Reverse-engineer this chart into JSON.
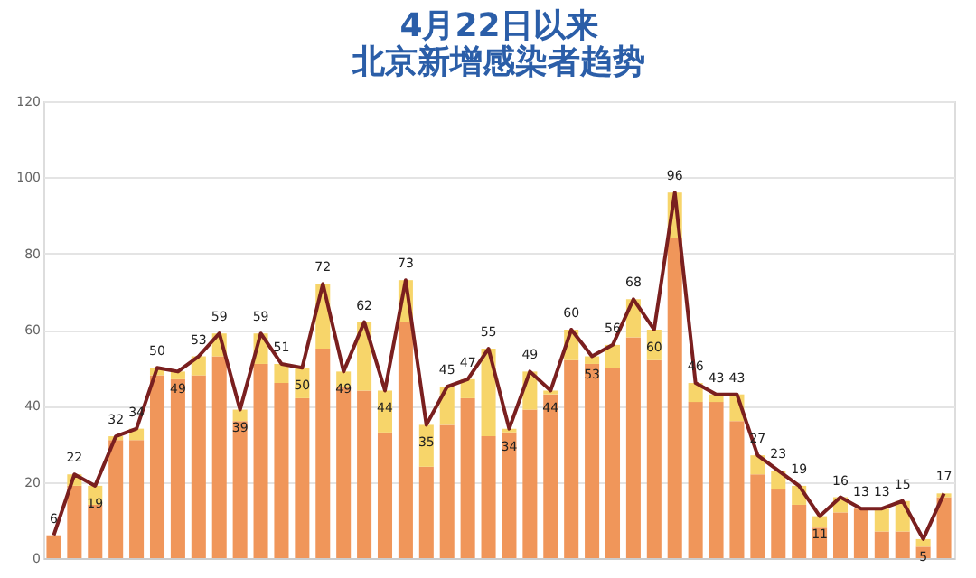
{
  "chart_data": {
    "type": "bar",
    "title": [
      "4月22日以来",
      "北京新增感染者趋势"
    ],
    "categories": [
      null,
      null,
      null,
      null,
      null,
      null,
      null,
      null,
      null,
      null,
      null,
      null,
      null,
      null,
      null,
      null,
      null,
      null,
      null,
      null,
      null,
      null,
      null,
      null,
      null,
      null,
      null,
      null,
      null,
      null,
      null,
      null,
      null,
      null,
      null,
      null,
      null,
      null,
      null,
      null,
      null,
      null,
      null,
      null
    ],
    "stacked": true,
    "ylim": [
      0,
      120
    ],
    "yticks": [
      0,
      20,
      40,
      60,
      80,
      100,
      120
    ],
    "grid": "y",
    "tick_labels": "y",
    "series": [
      {
        "color": "#f0965a",
        "values": [
          6,
          19,
          14,
          31,
          31,
          48,
          47,
          48,
          53,
          36,
          51,
          46,
          42,
          55,
          45,
          44,
          33,
          62,
          24,
          35,
          42,
          32,
          33,
          39,
          43,
          52,
          51,
          50,
          58,
          52,
          84,
          41,
          41,
          36,
          22,
          18,
          14,
          8,
          12,
          13,
          7,
          7,
          3,
          16
        ]
      },
      {
        "color": "#f7d56a",
        "values": [
          0,
          3,
          5,
          1,
          3,
          2,
          2,
          5,
          6,
          3,
          8,
          5,
          8,
          17,
          4,
          18,
          11,
          11,
          11,
          10,
          5,
          23,
          1,
          10,
          1,
          8,
          2,
          6,
          10,
          8,
          12,
          5,
          2,
          7,
          5,
          5,
          5,
          3,
          4,
          0,
          6,
          8,
          2,
          1
        ]
      },
      {
        "type": "line",
        "color": "#7a1f1f",
        "values": [
          6,
          22,
          19,
          32,
          34,
          50,
          49,
          53,
          59,
          39,
          59,
          51,
          50,
          72,
          49,
          62,
          44,
          73,
          35,
          45,
          47,
          55,
          34,
          49,
          44,
          60,
          53,
          56,
          68,
          60,
          96,
          46,
          43,
          43,
          27,
          23,
          19,
          11,
          16,
          13,
          13,
          15,
          5,
          17
        ],
        "data_labels": true
      }
    ]
  }
}
